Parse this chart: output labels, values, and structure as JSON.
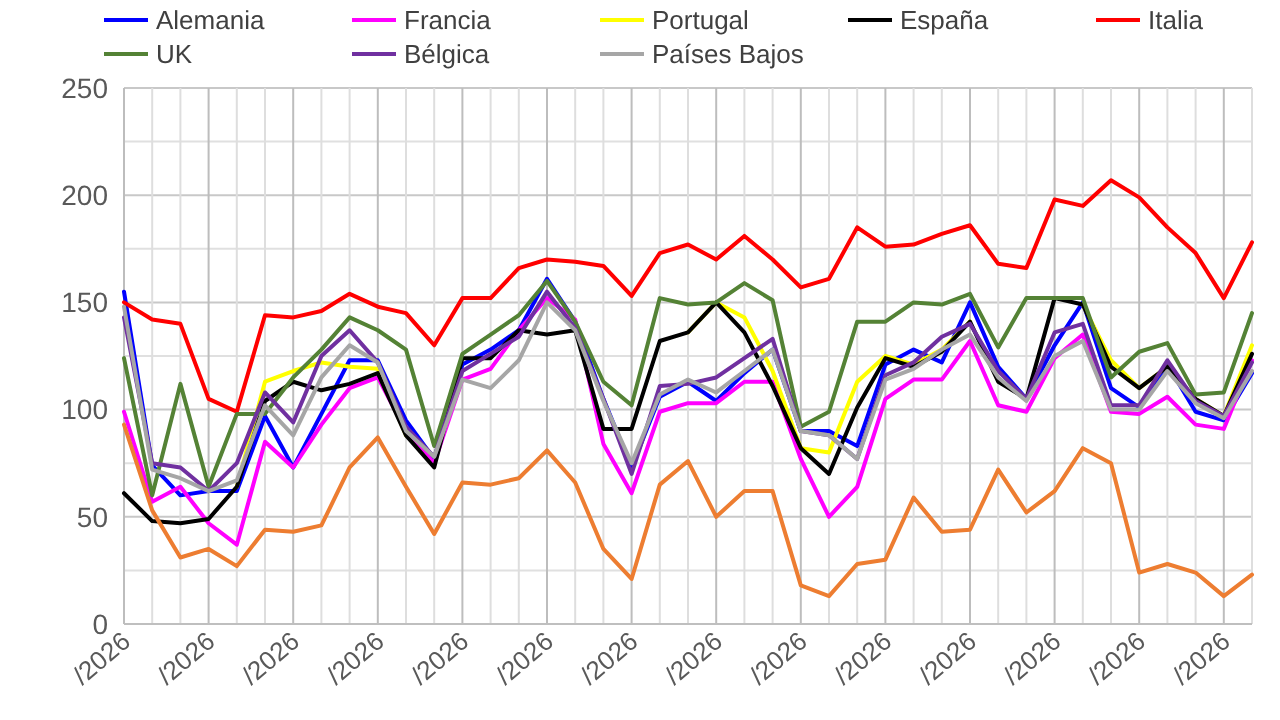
{
  "chart_data": {
    "type": "line",
    "categories": [
      "/2026",
      null,
      null,
      "/2026",
      null,
      null,
      "/2026",
      null,
      null,
      "/2026",
      null,
      null,
      "/2026",
      null,
      null,
      "/2026",
      null,
      null,
      "/2026",
      null,
      null,
      "/2026",
      null,
      null,
      "/2026",
      null,
      null,
      "/2026",
      null,
      null,
      "/2026",
      null,
      null,
      "/2026",
      null,
      null,
      "/2026",
      null,
      null,
      "/2026",
      null
    ],
    "ylim": [
      0,
      250
    ],
    "yticks": [
      0,
      {
        "value": 25,
        "label": null
      },
      50,
      {
        "value": 75,
        "label": null
      },
      100,
      {
        "value": 125,
        "label": null
      },
      150,
      {
        "value": 175,
        "label": null
      },
      200,
      {
        "value": 225,
        "label": null
      },
      250
    ],
    "grid": true,
    "legend": "top",
    "marker": "none",
    "line_style": "solid",
    "series": [
      {
        "name": "Alemania",
        "color": "#0000ff",
        "values": [
          155,
          74,
          60,
          62,
          62,
          97,
          73,
          98,
          123,
          123,
          95,
          77,
          121,
          128,
          137,
          161,
          141,
          105,
          73,
          106,
          113,
          104,
          117,
          128,
          90,
          90,
          83,
          121,
          128,
          122,
          150,
          120,
          105,
          130,
          150,
          110,
          101,
          121,
          99,
          95,
          117
        ]
      },
      {
        "name": "Francia",
        "color": "#ff00ff",
        "values": [
          99,
          57,
          64,
          47,
          37,
          85,
          73,
          93,
          110,
          115,
          90,
          75,
          114,
          119,
          137,
          152,
          142,
          84,
          61,
          99,
          103,
          103,
          113,
          113,
          77,
          50,
          64,
          105,
          114,
          114,
          132,
          102,
          99,
          124,
          135,
          99,
          98,
          106,
          93,
          91,
          123
        ]
      },
      {
        "name": "Portugal",
        "color": "#ffff00",
        "values": [
          null,
          null,
          null,
          null,
          64,
          113,
          118,
          122,
          120,
          119,
          88,
          null,
          null,
          null,
          null,
          null,
          null,
          null,
          null,
          null,
          136,
          150,
          143,
          118,
          82,
          80,
          113,
          125,
          121,
          128,
          141,
          null,
          null,
          null,
          149,
          123,
          110,
          120,
          105,
          97,
          130
        ]
      },
      {
        "name": "España",
        "color": "#000000",
        "values": [
          61,
          48,
          47,
          49,
          64,
          104,
          113,
          109,
          112,
          117,
          88,
          73,
          124,
          124,
          137,
          135,
          137,
          91,
          91,
          132,
          136,
          150,
          136,
          111,
          82,
          70,
          101,
          124,
          120,
          127,
          141,
          113,
          105,
          152,
          149,
          120,
          110,
          120,
          105,
          97,
          126
        ]
      },
      {
        "name": "Italia",
        "color": "#ff0000",
        "values": [
          150,
          142,
          140,
          105,
          99,
          144,
          143,
          146,
          154,
          148,
          145,
          130,
          152,
          152,
          166,
          170,
          169,
          167,
          153,
          173,
          177,
          170,
          181,
          170,
          157,
          161,
          185,
          176,
          177,
          182,
          186,
          168,
          166,
          198,
          195,
          207,
          199,
          185,
          173,
          152,
          178
        ]
      },
      {
        "name": "UK",
        "color": "#548235",
        "values": [
          124,
          60,
          112,
          64,
          98,
          98,
          115,
          128,
          143,
          137,
          128,
          83,
          126,
          135,
          144,
          160,
          141,
          113,
          102,
          152,
          149,
          150,
          159,
          151,
          92,
          99,
          141,
          141,
          150,
          149,
          154,
          129,
          152,
          152,
          152,
          115,
          127,
          131,
          107,
          108,
          145
        ]
      },
      {
        "name": "Bélgica",
        "color": "#7030a0",
        "values": [
          143,
          75,
          73,
          62,
          75,
          108,
          94,
          125,
          137,
          122,
          92,
          78,
          118,
          126,
          134,
          155,
          138,
          105,
          70,
          111,
          112,
          115,
          124,
          133,
          90,
          88,
          77,
          116,
          122,
          134,
          140,
          118,
          105,
          136,
          140,
          102,
          102,
          123,
          104,
          97,
          122
        ]
      },
      {
        "name": "Países Bajos",
        "color": "#a6a6a6",
        "values": [
          148,
          72,
          68,
          62,
          67,
          102,
          88,
          115,
          130,
          122,
          90,
          78,
          114,
          110,
          123,
          150,
          137,
          104,
          75,
          107,
          114,
          108,
          118,
          128,
          90,
          88,
          77,
          114,
          119,
          128,
          135,
          115,
          104,
          125,
          132,
          100,
          100,
          118,
          103,
          96,
          118
        ]
      },
      {
        "color": "#ed7d31",
        "values": [
          93,
          53,
          31,
          35,
          27,
          44,
          43,
          46,
          73,
          87,
          64,
          42,
          66,
          65,
          68,
          81,
          66,
          35,
          21,
          65,
          76,
          50,
          62,
          62,
          18,
          13,
          28,
          30,
          59,
          43,
          44,
          72,
          52,
          62,
          82,
          75,
          24,
          28,
          24,
          13,
          23
        ]
      }
    ]
  }
}
